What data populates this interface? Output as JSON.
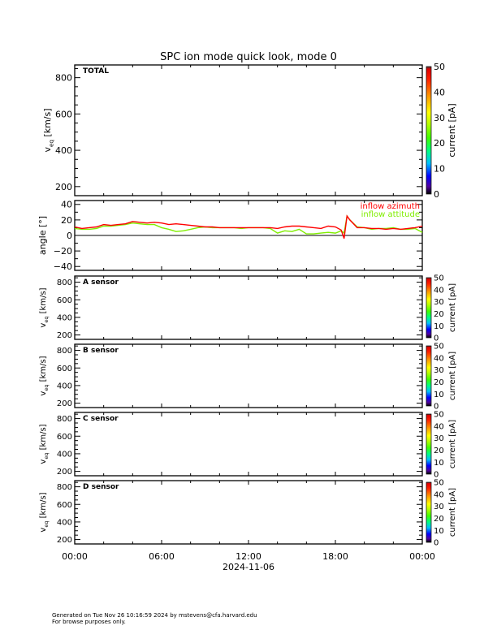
{
  "chart_data": {
    "type": "line",
    "title": "SPC ion mode quick look, mode 0",
    "x_ticks": [
      "00:00",
      "06:00",
      "12:00",
      "18:00",
      "00:00"
    ],
    "x_range_hours": [
      0,
      24
    ],
    "date_label": "2024-11-06",
    "spectrogram_panels": [
      {
        "label": "TOTAL",
        "ylabel": "v_eq [km/s]",
        "yticks": [
          200,
          400,
          600,
          800
        ],
        "ylim": [
          150,
          870
        ],
        "colorbar": {
          "label": "current [pA]",
          "ticks": [
            0,
            10,
            20,
            30,
            40,
            50
          ],
          "range": [
            0,
            50
          ]
        }
      },
      {
        "label": "A sensor",
        "ylabel": "v_eq [km/s]",
        "yticks": [
          200,
          400,
          600,
          800
        ],
        "ylim": [
          150,
          870
        ],
        "colorbar": {
          "label": "current [pA]",
          "ticks": [
            0,
            10,
            20,
            30,
            40,
            50
          ],
          "range": [
            0,
            50
          ]
        }
      },
      {
        "label": "B sensor",
        "ylabel": "v_eq [km/s]",
        "yticks": [
          200,
          400,
          600,
          800
        ],
        "ylim": [
          150,
          870
        ],
        "colorbar": {
          "label": "current [pA]",
          "ticks": [
            0,
            10,
            20,
            30,
            40,
            50
          ],
          "range": [
            0,
            50
          ]
        }
      },
      {
        "label": "C sensor",
        "ylabel": "v_eq [km/s]",
        "yticks": [
          200,
          400,
          600,
          800
        ],
        "ylim": [
          150,
          870
        ],
        "colorbar": {
          "label": "current [pA]",
          "ticks": [
            0,
            10,
            20,
            30,
            40,
            50
          ],
          "range": [
            0,
            50
          ]
        }
      },
      {
        "label": "D sensor",
        "ylabel": "v_eq [km/s]",
        "yticks": [
          200,
          400,
          600,
          800
        ],
        "ylim": [
          150,
          870
        ],
        "colorbar": {
          "label": "current [pA]",
          "ticks": [
            0,
            10,
            20,
            30,
            40,
            50
          ],
          "range": [
            0,
            50
          ]
        }
      }
    ],
    "angle_panel": {
      "ylabel": "angle [°]",
      "yticks": [
        -40,
        -20,
        0,
        20,
        40
      ],
      "ylim": [
        -45,
        45
      ],
      "x_hours": [
        0,
        0.5,
        1,
        1.5,
        2,
        2.5,
        3,
        3.5,
        4,
        4.5,
        5,
        5.5,
        6,
        6.5,
        7,
        7.5,
        8,
        8.5,
        9,
        9.5,
        10,
        10.5,
        11,
        11.5,
        12,
        12.5,
        13,
        13.5,
        14,
        14.5,
        15,
        15.5,
        16,
        16.5,
        17,
        17.5,
        18,
        18.4,
        18.6,
        18.8,
        19,
        19.5,
        20,
        20.5,
        21,
        21.5,
        22,
        22.5,
        23,
        23.5,
        24
      ],
      "series": [
        {
          "name": "inflow azimuth",
          "color": "#ff0000",
          "values": [
            11,
            9,
            10,
            11,
            14,
            13,
            14,
            15,
            18,
            17,
            16,
            17,
            16,
            14,
            15,
            14,
            13,
            12,
            11,
            11,
            10,
            10,
            10,
            10,
            10,
            10,
            10,
            10,
            9,
            11,
            12,
            12,
            11,
            10,
            9,
            12,
            11,
            7,
            -4,
            25,
            20,
            10,
            10,
            9,
            9,
            8,
            9,
            8,
            9,
            10,
            12
          ]
        },
        {
          "name": "inflow attitude",
          "color": "#80ee00",
          "values": [
            9,
            8,
            8,
            9,
            12,
            12,
            13,
            14,
            16,
            15,
            14,
            14,
            10,
            8,
            5,
            6,
            8,
            10,
            11,
            10,
            10,
            10,
            10,
            9,
            10,
            10,
            10,
            9,
            3,
            6,
            5,
            8,
            2,
            2,
            3,
            4,
            3,
            6,
            3,
            25,
            20,
            11,
            10,
            8,
            9,
            9,
            10,
            8,
            8,
            9,
            4
          ]
        }
      ]
    },
    "grid": false,
    "legend_placement": "top-right"
  },
  "footer": {
    "line1": "Generated on Tue Nov 26 10:16:59 2024 by mstevens@cfa.harvard.edu",
    "line2": "For browse purposes only."
  }
}
